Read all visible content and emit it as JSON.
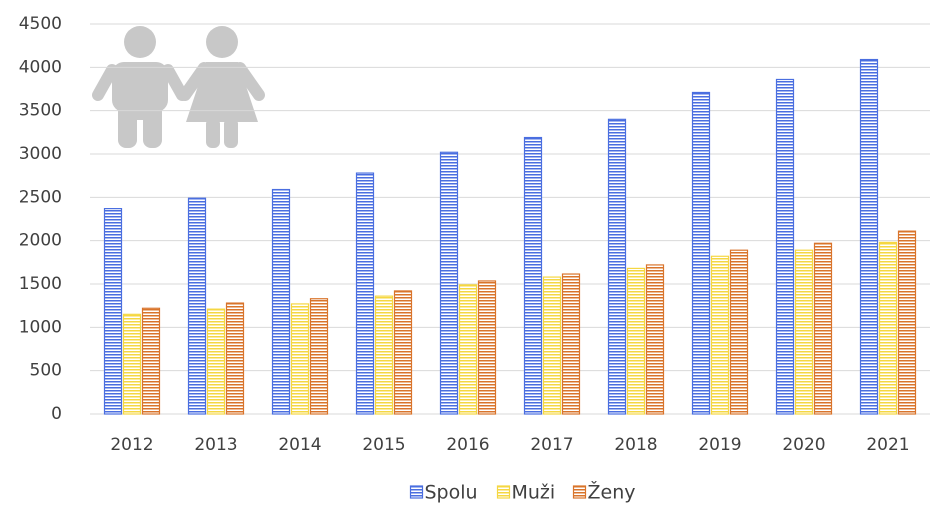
{
  "chart_data": {
    "type": "bar",
    "categories": [
      "2012",
      "2013",
      "2014",
      "2015",
      "2016",
      "2017",
      "2018",
      "2019",
      "2020",
      "2021"
    ],
    "series": [
      {
        "name": "Spolu",
        "color": "#4a6ee0",
        "values": [
          2370,
          2490,
          2590,
          2780,
          3020,
          3190,
          3400,
          3710,
          3860,
          4090
        ]
      },
      {
        "name": "Muži",
        "color": "#f5d742",
        "values": [
          1150,
          1210,
          1270,
          1360,
          1490,
          1580,
          1680,
          1820,
          1890,
          1980
        ]
      },
      {
        "name": "Ženy",
        "color": "#d9742b",
        "values": [
          1220,
          1280,
          1330,
          1420,
          1535,
          1615,
          1720,
          1890,
          1970,
          2110
        ]
      }
    ],
    "ylim": [
      0,
      4500
    ],
    "yticks": [
      0,
      500,
      1000,
      1500,
      2000,
      2500,
      3000,
      3500,
      4000,
      4500
    ],
    "grid": true,
    "legend": "bottom"
  }
}
